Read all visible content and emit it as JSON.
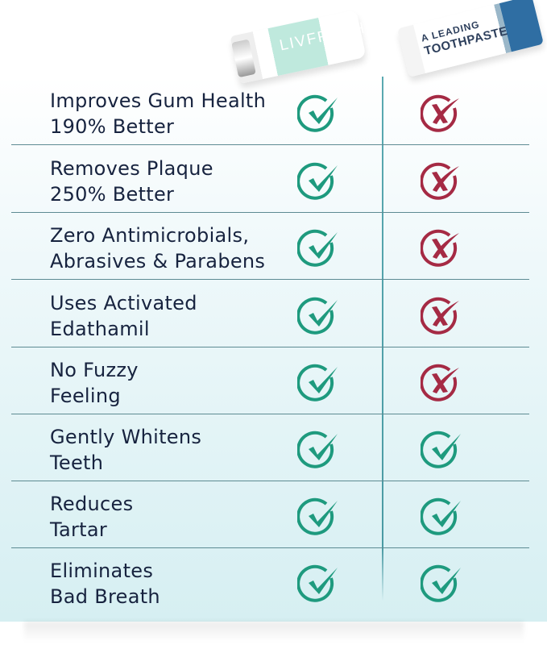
{
  "products": [
    {
      "name": "LIVFRESH",
      "side": "left"
    },
    {
      "name_line1": "A LEADING",
      "name_line2": "TOOTHPASTE",
      "side": "right"
    }
  ],
  "colors": {
    "check": "#1e9a7e",
    "cross": "#a52a44",
    "text": "#17233f",
    "divider": "#5d8b93"
  },
  "rows": [
    {
      "line1": "Improves Gum Health",
      "line2": "190% Better",
      "livfresh": "check-icon",
      "leading": "cross-icon"
    },
    {
      "line1": "Removes Plaque",
      "line2": "250% Better",
      "livfresh": "check-icon",
      "leading": "cross-icon"
    },
    {
      "line1": "Zero Antimicrobials,",
      "line2": "Abrasives & Parabens",
      "livfresh": "check-icon",
      "leading": "cross-icon"
    },
    {
      "line1": "Uses Activated",
      "line2": "Edathamil",
      "livfresh": "check-icon",
      "leading": "cross-icon"
    },
    {
      "line1": "No Fuzzy",
      "line2": "Feeling",
      "livfresh": "check-icon",
      "leading": "cross-icon"
    },
    {
      "line1": "Gently Whitens",
      "line2": "Teeth",
      "livfresh": "check-icon",
      "leading": "check-icon"
    },
    {
      "line1": "Reduces",
      "line2": "Tartar",
      "livfresh": "check-icon",
      "leading": "check-icon"
    },
    {
      "line1": "Eliminates",
      "line2": "Bad Breath",
      "livfresh": "check-icon",
      "leading": "check-icon"
    }
  ]
}
